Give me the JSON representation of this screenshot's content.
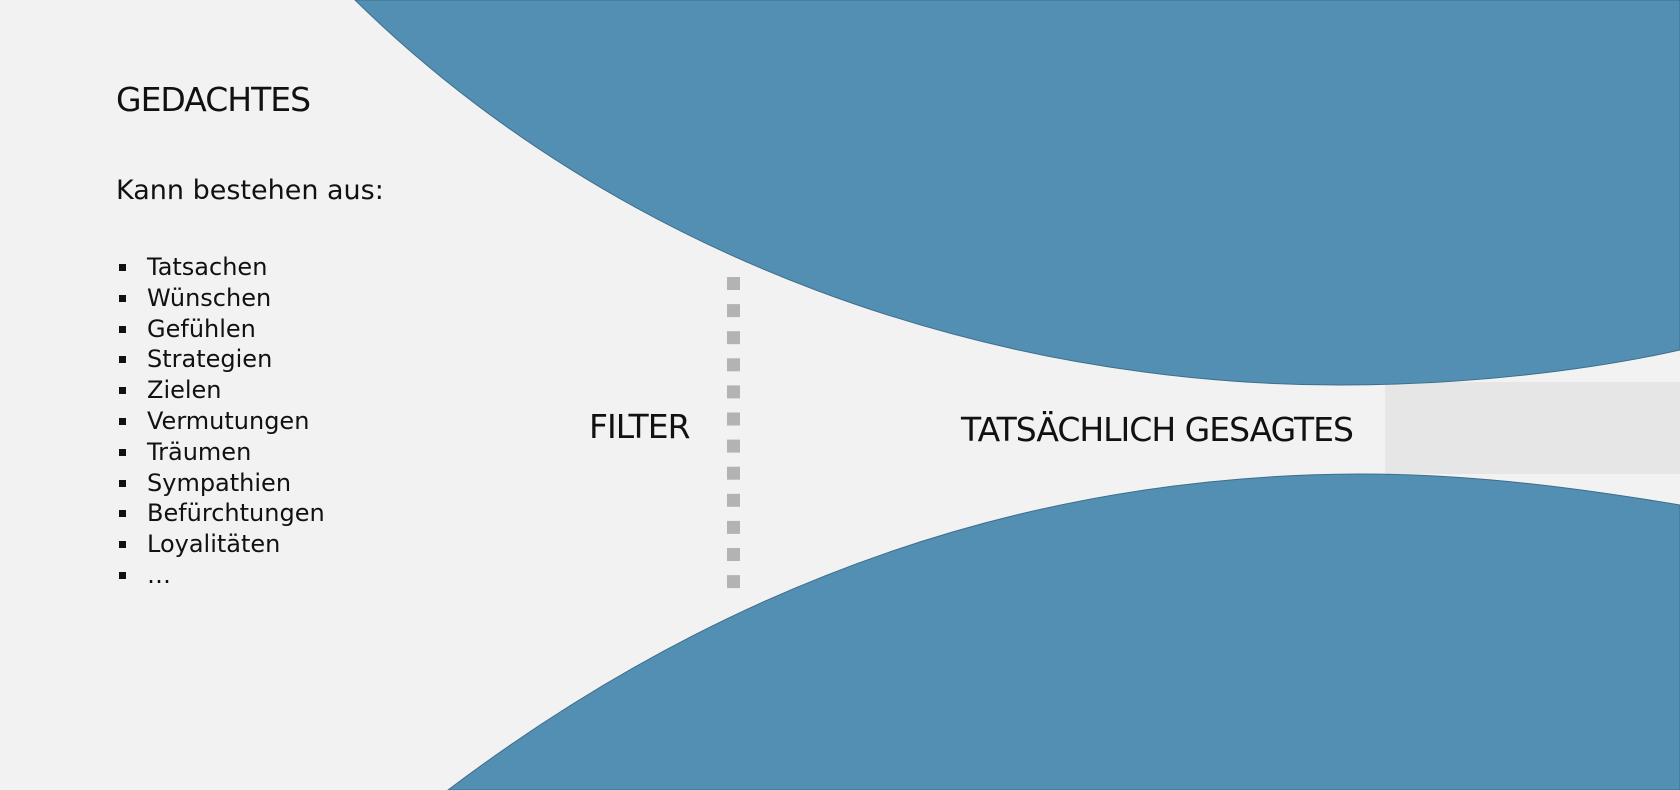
{
  "diagram": {
    "source": {
      "title": "GEDACHTES",
      "subtitle": "Kann bestehen aus:",
      "items": [
        "Tatsachen",
        "Wünschen",
        "Gefühlen",
        "Strategien",
        "Zielen",
        "Vermutungen",
        "Träumen",
        "Sympathien",
        "Befürchtungen",
        "Loyalitäten",
        "…"
      ]
    },
    "filter": {
      "label": "FILTER"
    },
    "result": {
      "label": "TATSÄCHLICH GESAGTES"
    }
  },
  "colors": {
    "background": "#f2f2f2",
    "funnel": "#528fb3",
    "output_band": "#e6e6e6",
    "filter_dots": "#b3b3b3",
    "text": "#111111"
  }
}
